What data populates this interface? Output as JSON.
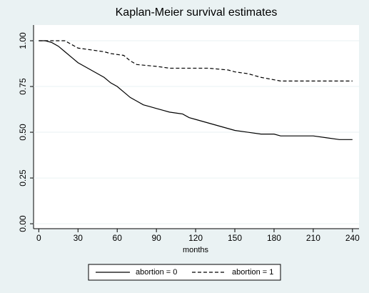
{
  "chart_data": {
    "type": "line",
    "title": "Kaplan-Meier survival estimates",
    "x_label": "months",
    "xlim": [
      -4,
      245
    ],
    "xticks": [
      0,
      30,
      60,
      90,
      120,
      150,
      180,
      210,
      240
    ],
    "ylim": [
      -0.027,
      1.086
    ],
    "yticks": [
      {
        "value": 0,
        "label": "0.00"
      },
      {
        "value": 0.25,
        "label": "0.25"
      },
      {
        "value": 0.5,
        "label": "0.50"
      },
      {
        "value": 0.75,
        "label": "0.75"
      },
      {
        "value": 1,
        "label": "1.00"
      }
    ],
    "grid": true,
    "legend": "bottom",
    "series": [
      {
        "name": "abortion = 0",
        "color": "#000000",
        "dash": "solid",
        "x": [
          0,
          5,
          10,
          15,
          20,
          25,
          30,
          35,
          40,
          45,
          50,
          55,
          60,
          65,
          70,
          75,
          80,
          85,
          90,
          95,
          100,
          110,
          115,
          120,
          130,
          140,
          150,
          160,
          170,
          180,
          185,
          210,
          220,
          230,
          240
        ],
        "values": [
          1.0,
          1.0,
          0.99,
          0.97,
          0.94,
          0.91,
          0.88,
          0.86,
          0.84,
          0.82,
          0.8,
          0.77,
          0.75,
          0.72,
          0.69,
          0.67,
          0.65,
          0.64,
          0.63,
          0.62,
          0.61,
          0.6,
          0.58,
          0.57,
          0.55,
          0.53,
          0.51,
          0.5,
          0.49,
          0.49,
          0.48,
          0.48,
          0.47,
          0.46,
          0.46
        ]
      },
      {
        "name": "abortion = 1",
        "color": "#000000",
        "dash": "dashed",
        "x": [
          0,
          20,
          25,
          30,
          40,
          50,
          55,
          65,
          70,
          75,
          90,
          100,
          130,
          145,
          150,
          160,
          170,
          185,
          240
        ],
        "values": [
          1.0,
          1.0,
          0.98,
          0.96,
          0.95,
          0.94,
          0.93,
          0.92,
          0.89,
          0.87,
          0.86,
          0.85,
          0.85,
          0.84,
          0.83,
          0.82,
          0.8,
          0.78,
          0.78
        ]
      }
    ]
  }
}
